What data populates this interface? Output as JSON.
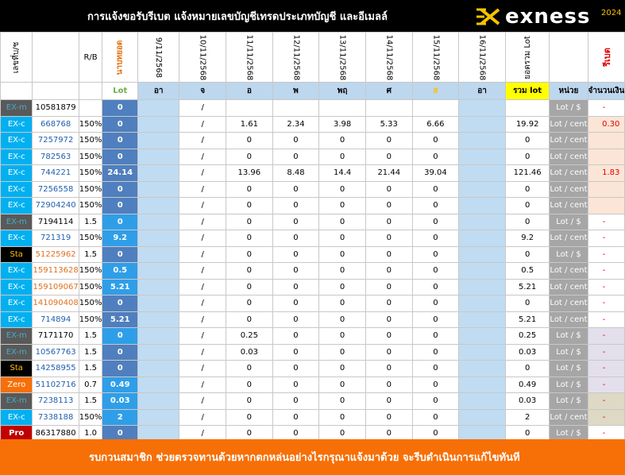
{
  "header": {
    "title": "การแจ้งขอรับรีเบต  แจ้งหมายเลขบัญชีเทรดประเภทบัญชี และอีเมลล์",
    "brand": "exness",
    "year": "2024"
  },
  "columns": {
    "seq": "เลขที่บ/ช",
    "rb": "R/B",
    "lot_top": "นาบทยอด",
    "dates": [
      "9/11/2568",
      "10/11/2568",
      "11/11/2568",
      "12/11/2568",
      "13/11/2568",
      "14/11/2568",
      "15/11/2568",
      "16/11/2568"
    ],
    "total_top": "ยอดรวม Lot",
    "unit_top": "",
    "rebate_top": "รีเบต",
    "unit_last_top": ""
  },
  "subheader": {
    "lot": "Lot",
    "days": [
      "อา",
      "จ",
      "อ",
      "พ",
      "พฤ",
      "ศ",
      "ส",
      "อา"
    ],
    "total": "รวม lot",
    "unit": "หน่วย",
    "amount": "จำนวนเงิน",
    "unit2": "หน่วย"
  },
  "rows": [
    {
      "type": "EX-m",
      "acct": "10581879",
      "rb": "",
      "lot": "0",
      "sep": "/",
      "d": [
        "",
        "",
        "",
        "",
        ""
      ],
      "total": "",
      "unit": "Lot / $",
      "amount": "-",
      "cur": "$"
    },
    {
      "type": "EX-c",
      "acct": "668768",
      "rb": "150%",
      "lot": "0",
      "sep": "/",
      "d": [
        "1.61",
        "2.34",
        "3.98",
        "5.33",
        "6.66"
      ],
      "total": "19.92",
      "unit": "Lot / cent",
      "amount": "0.30",
      "cur": "$"
    },
    {
      "type": "EX-c",
      "acct": "7257972",
      "rb": "150%",
      "lot": "0",
      "sep": "/",
      "d": [
        "0",
        "0",
        "0",
        "0",
        "0"
      ],
      "total": "0",
      "unit": "Lot / cent",
      "amount": "",
      "cur": "$"
    },
    {
      "type": "EX-c",
      "acct": "782563",
      "rb": "150%",
      "lot": "0",
      "sep": "/",
      "d": [
        "0",
        "0",
        "0",
        "0",
        "0"
      ],
      "total": "0",
      "unit": "Lot / cent",
      "amount": "",
      "cur": "$"
    },
    {
      "type": "EX-c",
      "acct": "744221",
      "rb": "150%",
      "lot": "24.14",
      "sep": "/",
      "d": [
        "13.96",
        "8.48",
        "14.4",
        "21.44",
        "39.04"
      ],
      "total": "121.46",
      "unit": "Lot / cent",
      "amount": "1.83",
      "cur": "$"
    },
    {
      "type": "EX-c",
      "acct": "7256558",
      "rb": "150%",
      "lot": "0",
      "sep": "/",
      "d": [
        "0",
        "0",
        "0",
        "0",
        "0"
      ],
      "total": "0",
      "unit": "Lot / cent",
      "amount": "",
      "cur": "$"
    },
    {
      "type": "EX-c",
      "acct": "72904240",
      "rb": "150%",
      "lot": "0",
      "sep": "/",
      "d": [
        "0",
        "0",
        "0",
        "0",
        "0"
      ],
      "total": "0",
      "unit": "Lot / cent",
      "amount": "",
      "cur": "$"
    },
    {
      "type": "EX-m",
      "acct": "7194114",
      "rb": "1.5",
      "lot": "0",
      "sep": "/",
      "d": [
        "0",
        "0",
        "0",
        "0",
        "0"
      ],
      "total": "0",
      "unit": "Lot / $",
      "amount": "-",
      "cur": "$"
    },
    {
      "type": "EX-c",
      "acct": "721319",
      "rb": "150%",
      "lot": "9.2",
      "sep": "/",
      "d": [
        "0",
        "0",
        "0",
        "0",
        "0"
      ],
      "total": "9.2",
      "unit": "Lot / cent",
      "amount": "-",
      "cur": "$"
    },
    {
      "type": "Sta",
      "acct": "51225962",
      "rb": "1.5",
      "lot": "0",
      "sep": "/",
      "d": [
        "0",
        "0",
        "0",
        "0",
        "0"
      ],
      "total": "0",
      "unit": "Lot / $",
      "amount": "-",
      "cur": "$"
    },
    {
      "type": "EX-c",
      "acct": "159113628",
      "rb": "150%",
      "lot": "0.5",
      "sep": "/",
      "d": [
        "0",
        "0",
        "0",
        "0",
        "0"
      ],
      "total": "0.5",
      "unit": "Lot / cent",
      "amount": "-",
      "cur": "$"
    },
    {
      "type": "EX-c",
      "acct": "159109067",
      "rb": "150%",
      "lot": "5.21",
      "sep": "/",
      "d": [
        "0",
        "0",
        "0",
        "0",
        "0"
      ],
      "total": "5.21",
      "unit": "Lot / cent",
      "amount": "-",
      "cur": "$"
    },
    {
      "type": "EX-c",
      "acct": "141090408",
      "rb": "150%",
      "lot": "0",
      "sep": "/",
      "d": [
        "0",
        "0",
        "0",
        "0",
        "0"
      ],
      "total": "0",
      "unit": "Lot / cent",
      "amount": "-",
      "cur": "$"
    },
    {
      "type": "EX-c",
      "acct": "714894",
      "rb": "150%",
      "lot": "5.21",
      "sep": "/",
      "d": [
        "0",
        "0",
        "0",
        "0",
        "0"
      ],
      "total": "5.21",
      "unit": "Lot / cent",
      "amount": "-",
      "cur": "$"
    },
    {
      "type": "EX-m",
      "acct": "7171170",
      "rb": "1.5",
      "lot": "0",
      "sep": "/",
      "d": [
        "0.25",
        "0",
        "0",
        "0",
        "0"
      ],
      "total": "0.25",
      "unit": "Lot / $",
      "amount": "-",
      "cur": "$"
    },
    {
      "type": "EX-m",
      "acct": "10567763",
      "rb": "1.5",
      "lot": "0",
      "sep": "/",
      "d": [
        "0.03",
        "0",
        "0",
        "0",
        "0"
      ],
      "total": "0.03",
      "unit": "Lot / $",
      "amount": "-",
      "cur": "$"
    },
    {
      "type": "Sta",
      "acct": "14258955",
      "rb": "1.5",
      "lot": "0",
      "sep": "/",
      "d": [
        "0",
        "0",
        "0",
        "0",
        "0"
      ],
      "total": "0",
      "unit": "Lot / $",
      "amount": "-",
      "cur": "$"
    },
    {
      "type": "Zero",
      "acct": "51102716",
      "rb": "0.7",
      "lot": "0.49",
      "sep": "/",
      "d": [
        "0",
        "0",
        "0",
        "0",
        "0"
      ],
      "total": "0.49",
      "unit": "Lot / $",
      "amount": "-",
      "cur": "$"
    },
    {
      "type": "EX-m",
      "acct": "7238113",
      "rb": "1.5",
      "lot": "0.03",
      "sep": "/",
      "d": [
        "0",
        "0",
        "0",
        "0",
        "0"
      ],
      "total": "0.03",
      "unit": "Lot / $",
      "amount": "-",
      "cur": "$"
    },
    {
      "type": "EX-c",
      "acct": "7338188",
      "rb": "150%",
      "lot": "2",
      "sep": "/",
      "d": [
        "0",
        "0",
        "0",
        "0",
        "0"
      ],
      "total": "2",
      "unit": "Lot / cent",
      "amount": "-",
      "cur": "$"
    },
    {
      "type": "Pro",
      "acct": "86317880",
      "rb": "1.0",
      "lot": "0",
      "sep": "/",
      "d": [
        "0",
        "0",
        "0",
        "0",
        "0"
      ],
      "total": "0",
      "unit": "Lot / $",
      "amount": "-",
      "cur": "$"
    }
  ],
  "footer": {
    "text": "รบกวนสมาชิก ช่วยตรวจทานด้วยหากตกหล่นอย่างไรกรุณาแจ้งมาด้วย จะรีบดำเนินการแก้ไขทันที"
  },
  "colors": {
    "ex_c": "#00b0f0",
    "ex_m": "#595959",
    "sta": "#000000",
    "sta_text": "#ffc000",
    "zero": "#f76f07",
    "pro": "#c00000",
    "accent": "#f76f07",
    "acct_blue": "#1f5fae",
    "acct_orange": "#e07020"
  }
}
